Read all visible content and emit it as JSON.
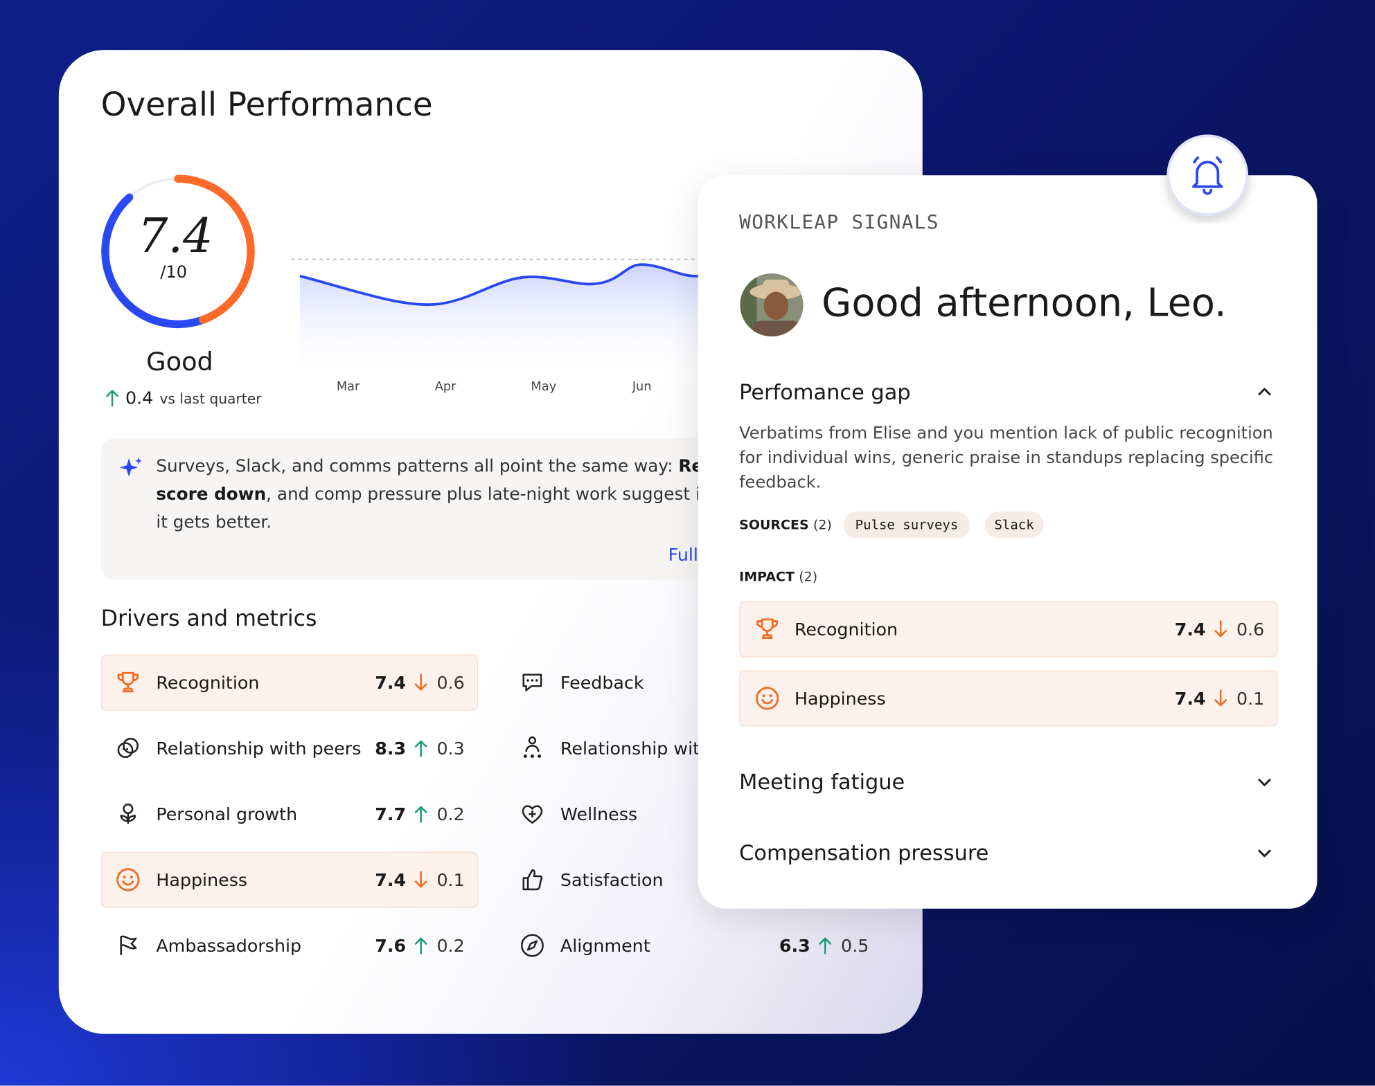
{
  "overall": {
    "title": "Overall Performance",
    "score": 7.4,
    "scale": "/10",
    "rating": "Good",
    "change": 0.4,
    "change_direction": "up",
    "change_label": "vs last quarter"
  },
  "trend": {
    "months": [
      "Mar",
      "Apr",
      "May",
      "Jun"
    ]
  },
  "insight": {
    "lines": [
      [
        {
          "text": "Surveys, Slack, and comms patterns all point the same way: ",
          "bold": false
        },
        {
          "text": "Recog",
          "bold": true
        }
      ],
      [
        {
          "text": "score down",
          "bold": true
        },
        {
          "text": ", and comp pressure plus late-night work suggest it ma",
          "bold": false
        }
      ],
      [
        {
          "text": "it gets better.",
          "bold": false
        }
      ]
    ],
    "link": "Full"
  },
  "drivers": {
    "title": "Drivers and metrics",
    "items": [
      {
        "label": "Recognition",
        "value": 7.4,
        "delta": 0.6,
        "direction": "down",
        "highlight": true
      },
      {
        "label": "Relationship with peers",
        "value": 8.3,
        "delta": 0.3,
        "direction": "up",
        "highlight": false
      },
      {
        "label": "Personal growth",
        "value": 7.7,
        "delta": 0.2,
        "direction": "up",
        "highlight": false
      },
      {
        "label": "Happiness",
        "value": 7.4,
        "delta": 0.1,
        "direction": "down",
        "highlight": true
      },
      {
        "label": "Ambassadorship",
        "value": 7.6,
        "delta": 0.2,
        "direction": "up",
        "highlight": false
      },
      {
        "label": "Feedback"
      },
      {
        "label": "Relationship with"
      },
      {
        "label": "Wellness"
      },
      {
        "label": "Satisfaction"
      },
      {
        "label": "Alignment",
        "value": 6.3,
        "delta": 0.5,
        "direction": "up",
        "highlight": false
      }
    ]
  },
  "signals": {
    "heading": "WORKLEAP SIGNALS",
    "greeting": "Good afternoon, Leo.",
    "sections": [
      {
        "title": "Perfomance gap",
        "expanded": true,
        "body": [
          "Verbatims from Elise and you mention lack of public recognition",
          "for individual wins, generic praise in standups replacing specific",
          "feedback."
        ],
        "sources_label": "SOURCES",
        "sources_count": "(2)",
        "sources": [
          "Pulse surveys",
          "Slack"
        ],
        "impact_label": "IMPACT",
        "impact_count": "(2)",
        "impact": [
          {
            "label": "Recognition",
            "value": 7.4,
            "delta": 0.6,
            "direction": "down"
          },
          {
            "label": "Happiness",
            "value": 7.4,
            "delta": 0.1,
            "direction": "down"
          }
        ]
      },
      {
        "title": "Meeting fatigue",
        "expanded": false
      },
      {
        "title": "Compensation pressure",
        "expanded": false
      }
    ]
  }
}
